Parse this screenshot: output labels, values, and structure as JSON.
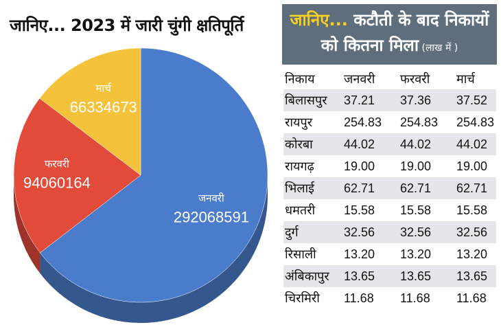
{
  "left_title": "जानिए... 2023 में जारी चुंगी क्षतिपूर्ति",
  "banner": {
    "highlight": "जानिए...",
    "line1_rest": " कटौती के बाद निकायों",
    "line2": "को कितना मिला",
    "line2_small": " (लाख में )"
  },
  "colors": {
    "january": "#4a7ccb",
    "february": "#e24a3a",
    "march": "#f5c33b",
    "banner_bg": "#5e6e7d",
    "banner_highlight": "#f5d020",
    "row_shade": "#e3e6ea"
  },
  "chart_data": [
    {
      "type": "pie",
      "title": "जानिए... 2023 में जारी चुंगी क्षतिपूर्ति",
      "slices": [
        {
          "label": "जनवरी",
          "value": 292068591,
          "value_text": "292068591",
          "color": "#4a7ccb"
        },
        {
          "label": "फरवरी",
          "value": 94060164,
          "value_text": "94060164",
          "color": "#e24a3a"
        },
        {
          "label": "मार्च",
          "value": 66334673,
          "value_text": "66334673",
          "color": "#f5c33b"
        }
      ]
    },
    {
      "type": "table",
      "title": "जानिए... कटौती के बाद निकायों को कितना मिला (लाख में )",
      "columns": [
        "निकाय",
        "जनवरी",
        "फरवरी",
        "मार्च"
      ],
      "rows": [
        [
          "बिलासपुर",
          "37.21",
          "37.36",
          "37.52"
        ],
        [
          "रायपुर",
          "254.83",
          "254.83",
          "254.83"
        ],
        [
          "कोरबा",
          "44.02",
          "44.02",
          "44.02"
        ],
        [
          "रायगढ़",
          "19.00",
          "19.00",
          "19.00"
        ],
        [
          "भिलाई",
          "62.71",
          "62.71",
          "62.71"
        ],
        [
          "धमतरी",
          "15.58",
          "15.58",
          "15.58"
        ],
        [
          "दुर्ग",
          "32.56",
          "32.56",
          "32.56"
        ],
        [
          "रिसाली",
          "13.20",
          "13.20",
          "13.20"
        ],
        [
          "अंबिकापुर",
          "13.65",
          "13.65",
          "13.65"
        ],
        [
          "चिरमिरी",
          "11.68",
          "11.68",
          "11.68"
        ]
      ]
    }
  ]
}
